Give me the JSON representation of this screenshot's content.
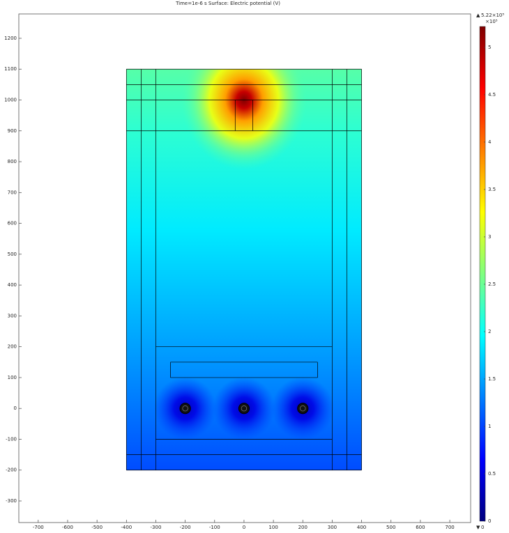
{
  "chart_data": {
    "type": "surface",
    "title": "Time=1e-6 s   Surface: Electric potential (V)",
    "xlim": [
      -766,
      771
    ],
    "ylim": [
      -370,
      1279
    ],
    "xticks": [
      -700,
      -600,
      -500,
      -400,
      -300,
      -200,
      -100,
      0,
      100,
      200,
      300,
      400,
      500,
      600,
      700
    ],
    "yticks": [
      -300,
      -200,
      -100,
      0,
      100,
      200,
      300,
      400,
      500,
      600,
      700,
      800,
      900,
      1000,
      1100,
      1200
    ],
    "lines": [
      [
        -400,
        -200,
        400,
        -200
      ],
      [
        -400,
        1100,
        400,
        1100
      ],
      [
        -400,
        -200,
        -400,
        1100
      ],
      [
        400,
        -200,
        400,
        1100
      ],
      [
        -350,
        -200,
        -350,
        1100
      ],
      [
        -300,
        -200,
        -300,
        1100
      ],
      [
        300,
        -200,
        300,
        1100
      ],
      [
        350,
        -200,
        350,
        1100
      ],
      [
        -400,
        1050,
        400,
        1050
      ],
      [
        -400,
        1000,
        400,
        1000
      ],
      [
        -400,
        900,
        400,
        900
      ],
      [
        -400,
        -150,
        400,
        -150
      ],
      [
        -300,
        -100,
        300,
        -100
      ],
      [
        -300,
        200,
        300,
        200
      ],
      [
        -30,
        900,
        -30,
        1000
      ],
      [
        30,
        900,
        30,
        1000
      ],
      [
        -250,
        100,
        250,
        100
      ],
      [
        -250,
        150,
        250,
        150
      ],
      [
        -250,
        100,
        -250,
        150
      ],
      [
        250,
        100,
        250,
        150
      ]
    ],
    "circles": [
      [
        -200,
        0,
        18
      ],
      [
        0,
        0,
        18
      ],
      [
        200,
        0,
        18
      ]
    ],
    "colormap": [
      "#00007f",
      "#0000ff",
      "#007fff",
      "#00ffff",
      "#7fff7f",
      "#ffff00",
      "#ff7f00",
      "#ff0000",
      "#7f0000"
    ],
    "colorbar": {
      "clim": [
        0,
        5.22
      ],
      "ticks": [
        0,
        0.5,
        1,
        1.5,
        2,
        2.5,
        3,
        3.5,
        4,
        4.5,
        5
      ],
      "scale_label": "×10⁵",
      "max_label": {
        "value": 5.22,
        "label": "5.22×10⁵"
      },
      "min_label": {
        "value": 0,
        "label": "0"
      }
    }
  }
}
